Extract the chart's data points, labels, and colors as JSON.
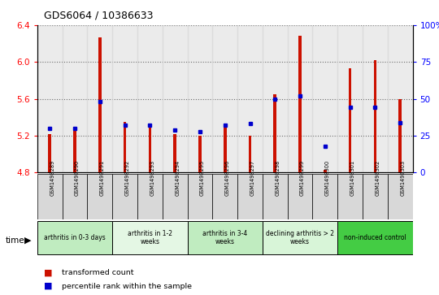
{
  "title": "GDS6064 / 10386633",
  "samples": [
    "GSM1498289",
    "GSM1498290",
    "GSM1498291",
    "GSM1498292",
    "GSM1498293",
    "GSM1498294",
    "GSM1498295",
    "GSM1498296",
    "GSM1498297",
    "GSM1498298",
    "GSM1498299",
    "GSM1498300",
    "GSM1498301",
    "GSM1498302",
    "GSM1498303"
  ],
  "red_values": [
    5.22,
    5.3,
    6.27,
    5.35,
    5.3,
    5.22,
    5.2,
    5.3,
    5.2,
    5.65,
    6.28,
    4.83,
    5.93,
    6.02,
    5.6
  ],
  "blue_pct": [
    30,
    30,
    48,
    32,
    32,
    29,
    28,
    32,
    33,
    50,
    52,
    18,
    44,
    44,
    34
  ],
  "y_min": 4.8,
  "y_max": 6.4,
  "y_ticks": [
    4.8,
    5.2,
    5.6,
    6.0,
    6.4
  ],
  "y2_ticks": [
    0,
    25,
    50,
    75,
    100
  ],
  "groups": [
    {
      "label": "arthritis in 0-3 days",
      "start": 0,
      "end": 3,
      "color": "#c0ecc0"
    },
    {
      "label": "arthritis in 1-2\nweeks",
      "start": 3,
      "end": 6,
      "color": "#e4f7e4"
    },
    {
      "label": "arthritis in 3-4\nweeks",
      "start": 6,
      "end": 9,
      "color": "#c0ecc0"
    },
    {
      "label": "declining arthritis > 2\nweeks",
      "start": 9,
      "end": 12,
      "color": "#d8f5d8"
    },
    {
      "label": "non-induced control",
      "start": 12,
      "end": 15,
      "color": "#44cc44"
    }
  ],
  "bar_color": "#cc1100",
  "dot_color": "#0000cc",
  "bar_width": 0.12,
  "base_value": 4.8
}
